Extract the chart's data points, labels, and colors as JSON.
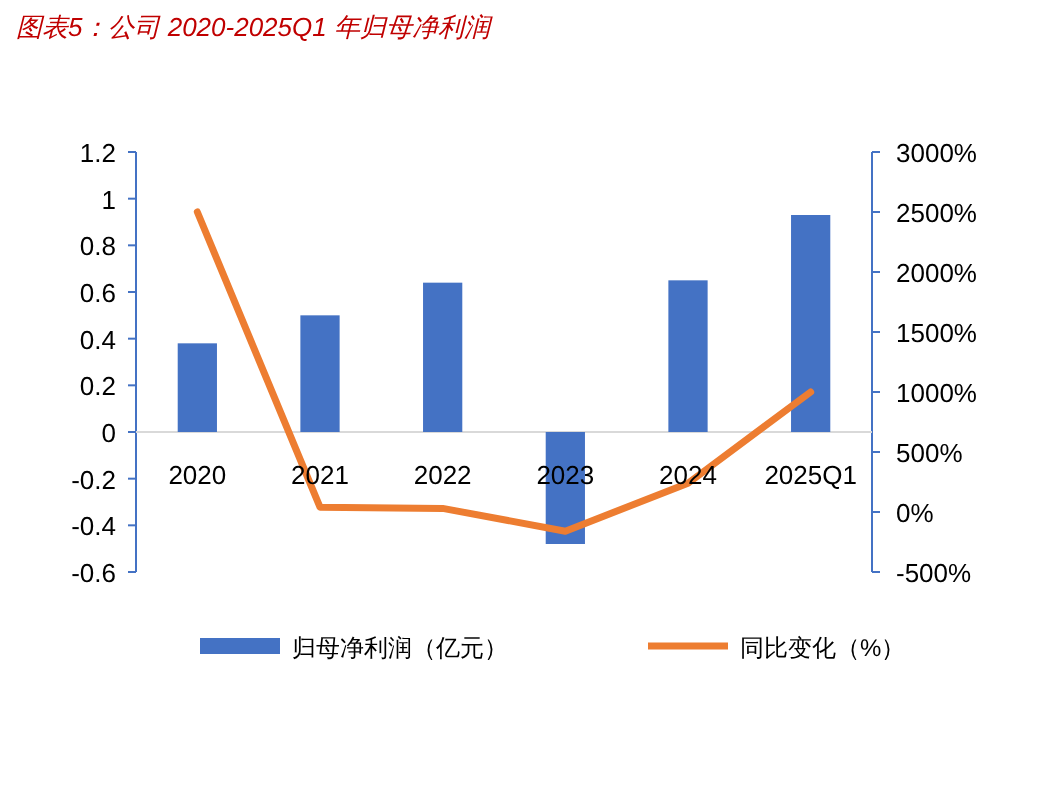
{
  "chart_data": {
    "type": "bar",
    "title": "图表5：公司 2020-2025Q1 年归母净利润",
    "categories": [
      "2020",
      "2021",
      "2022",
      "2023",
      "2024",
      "2025Q1"
    ],
    "series": [
      {
        "name": "归母净利润（亿元）",
        "color": "#4472c4",
        "values": [
          0.38,
          0.5,
          0.64,
          -0.48,
          0.65,
          0.93
        ]
      },
      {
        "name": "同比变化（%）",
        "color": "#ed7d31",
        "type": "line",
        "axis": "y2",
        "values": [
          2500,
          40,
          30,
          -160,
          240,
          1000
        ]
      }
    ],
    "ylim": [
      -0.6,
      1.2
    ],
    "yticks": [
      -0.6,
      -0.4,
      -0.2,
      0,
      0.2,
      0.4,
      0.6,
      0.8,
      1,
      1.2
    ],
    "y2lim": [
      -500,
      3000
    ],
    "y2ticks": [
      {
        "value": -500,
        "label": "-500%"
      },
      {
        "value": 0,
        "label": "0%"
      },
      {
        "value": 500,
        "label": "500%"
      },
      {
        "value": 1000,
        "label": "1000%"
      },
      {
        "value": 1500,
        "label": "1500%"
      },
      {
        "value": 2000,
        "label": "2000%"
      },
      {
        "value": 2500,
        "label": "2500%"
      },
      {
        "value": 3000,
        "label": "3000%"
      }
    ],
    "grid": false,
    "legend": "bottom"
  }
}
